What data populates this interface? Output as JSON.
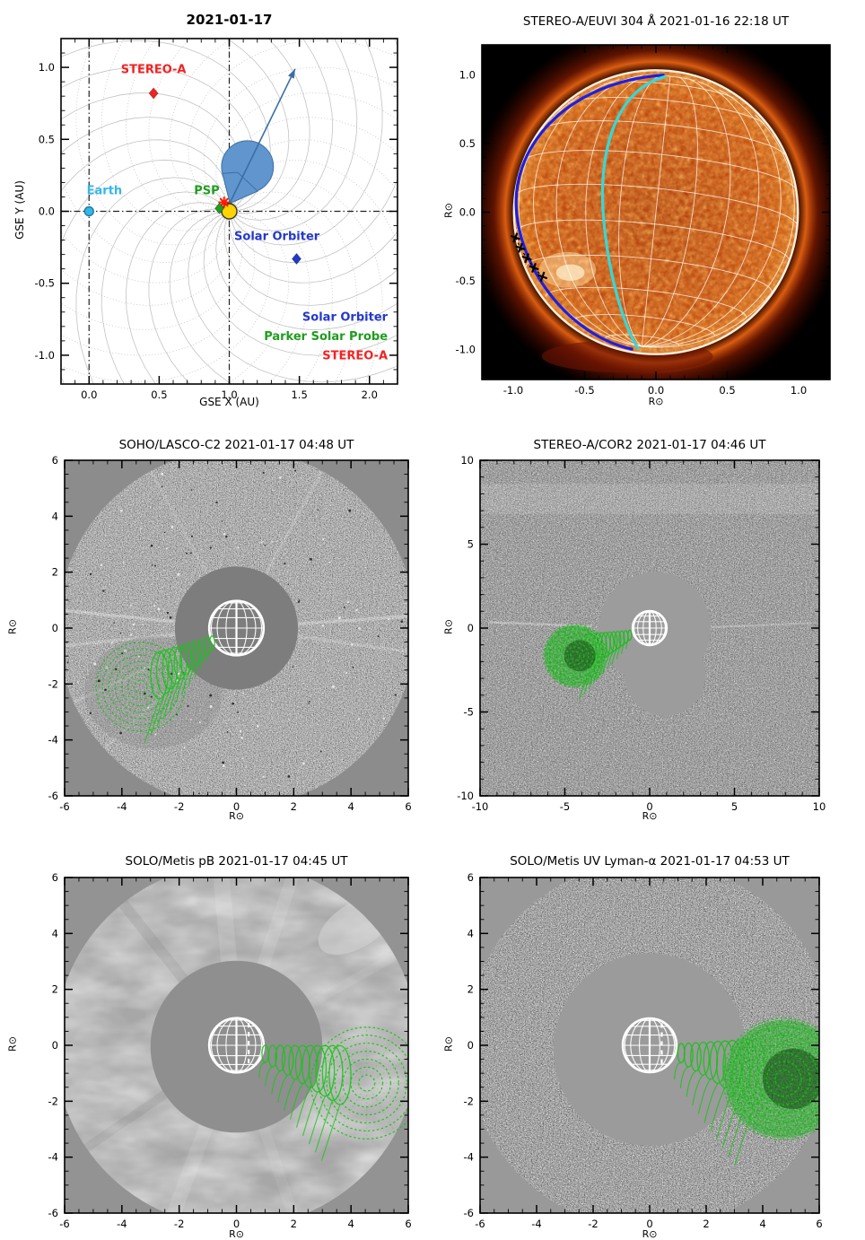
{
  "figure": {
    "background": "#ffffff"
  },
  "chart_data": [
    {
      "id": "orbit",
      "type": "scatter",
      "title": "2021-01-17",
      "xlabel": "GSE X (AU)",
      "ylabel": "GSE Y (AU)",
      "xlim": [
        -0.2,
        2.2
      ],
      "ylim": [
        -1.2,
        1.2
      ],
      "xticks": [
        0.0,
        0.5,
        1.0,
        1.5,
        2.0
      ],
      "xtick_labels": [
        "0.0",
        "0.5",
        "1.0",
        "1.5",
        "2.0"
      ],
      "yticks": [
        -1.0,
        -0.5,
        0.0,
        0.5,
        1.0
      ],
      "ytick_labels": [
        "-1.0",
        "-0.5",
        "0.0",
        "0.5",
        "1.0"
      ],
      "minor_tick_step": 0.1,
      "grid": "parker-spiral-field-lines",
      "sun": {
        "name": "Sun",
        "x": 1.0,
        "y": 0.0,
        "color": "#ffd400"
      },
      "spacecraft": [
        {
          "name": "STEREO-A",
          "x": 0.46,
          "y": 0.82,
          "marker": "diamond",
          "color": "#f22222",
          "label": {
            "text": "STEREO-A",
            "x": 0.46,
            "y": 0.96,
            "color": "#f22222"
          }
        },
        {
          "name": "Earth",
          "x": 0.0,
          "y": 0.0,
          "marker": "circle",
          "color": "#35b6e8",
          "label": {
            "text": "Earth",
            "x": 0.11,
            "y": 0.12,
            "color": "#35b6e8"
          }
        },
        {
          "name": "PSP",
          "x": 0.93,
          "y": 0.02,
          "marker": "diamond",
          "color": "#1f9d1f",
          "label": {
            "text": "PSP",
            "x": 0.84,
            "y": 0.12,
            "color": "#1f9d1f"
          }
        },
        {
          "name": "Solar Orbiter",
          "x": 1.48,
          "y": -0.33,
          "marker": "diamond",
          "color": "#2438cc",
          "label": {
            "text": "Solar Orbiter",
            "x": 1.34,
            "y": -0.2,
            "color": "#2438cc"
          }
        }
      ],
      "flare_star": {
        "x": 0.963,
        "y": 0.062,
        "color": "#ff1a00"
      },
      "cme": {
        "tip_x": 1.005,
        "tip_y": 0.055,
        "center_x": 1.13,
        "center_y": 0.31,
        "radius": 0.185,
        "fill": "#6096cd",
        "edge": "#3c6ea5"
      },
      "arrow": {
        "x1": 1.0,
        "y1": 0.05,
        "x2": 1.47,
        "y2": 0.99,
        "color": "#3c6ea5"
      },
      "guides": {
        "vertical_x": [
          0.0,
          1.0
        ],
        "horizontal_y": [
          0.0
        ]
      },
      "legend": [
        {
          "label": "Solar Orbiter",
          "color": "#2438cc"
        },
        {
          "label": "Parker Solar Probe",
          "color": "#1f9d1f"
        },
        {
          "label": "STEREO-A",
          "color": "#f22222"
        }
      ],
      "legend_anchor": {
        "x": 2.13,
        "y_start": -0.76,
        "dy": 0.135
      }
    },
    {
      "id": "euvi",
      "type": "image",
      "title": "STEREO-A/EUVI 304 Å 2021-01-16 22:18 UT",
      "xlabel": "R⊙",
      "ylabel": "R⊙",
      "xlim": [
        -1.22,
        1.22
      ],
      "ylim": [
        -1.22,
        1.22
      ],
      "xticks": [
        -1.0,
        -0.5,
        0.0,
        0.5,
        1.0
      ],
      "xtick_labels": [
        "-1.0",
        "-0.5",
        "0.0",
        "0.5",
        "1.0"
      ],
      "yticks": [
        -1.0,
        -0.5,
        0.0,
        0.5,
        1.0
      ],
      "ytick_labels": [
        "-1.0",
        "-0.5",
        "0.0",
        "0.5",
        "1.0"
      ],
      "minor_tick_step": 0.1,
      "disk_radius": 1.0,
      "colors": {
        "background": "#000000",
        "disk": "#c23c06",
        "limb": "#ffeacb",
        "grid": "#ffffff",
        "blue_meridian": "#1f1fe0",
        "cyan_meridian": "#35d8d8",
        "limb_markers": "#000000"
      },
      "limb_markers": [
        {
          "x": -0.985,
          "y": -0.185
        },
        {
          "x": -0.95,
          "y": -0.26
        },
        {
          "x": -0.905,
          "y": -0.335
        },
        {
          "x": -0.855,
          "y": -0.405
        },
        {
          "x": -0.795,
          "y": -0.47
        }
      ]
    },
    {
      "id": "lasco",
      "type": "image",
      "title": "SOHO/LASCO-C2 2021-01-17 04:48 UT",
      "xlabel": "R⊙",
      "ylabel": "R⊙",
      "xlim": [
        -6,
        6
      ],
      "ylim": [
        -6,
        6
      ],
      "xticks": [
        -6,
        -4,
        -2,
        0,
        2,
        4,
        6
      ],
      "xtick_labels": [
        "-6",
        "-4",
        "-2",
        "0",
        "2",
        "4",
        "6"
      ],
      "yticks": [
        -6,
        -4,
        -2,
        0,
        2,
        4,
        6
      ],
      "ytick_labels": [
        "-6",
        "-4",
        "-2",
        "0",
        "2",
        "4",
        "6"
      ],
      "minor_tick_step": 0.5,
      "fov_radius": 6.25,
      "occulter_radius": 2.15,
      "sun_radius": 0.95,
      "colors": {
        "background": "#8c8c8c",
        "fov": "#b2b2b2",
        "occulter": "#7d7d7d",
        "sun_grid": "#ffffff",
        "gcs": "#17c517"
      },
      "gcs": {
        "front_x": -3.35,
        "front_y": -2.1,
        "front_radius": 1.55,
        "axis_deg": 212,
        "leg_start": 1.0,
        "filled": false
      }
    },
    {
      "id": "cor2",
      "type": "image",
      "title": "STEREO-A/COR2 2021-01-17 04:46 UT",
      "xlabel": "R⊙",
      "ylabel": "R⊙",
      "xlim": [
        -10,
        10
      ],
      "ylim": [
        -10,
        10
      ],
      "xticks": [
        -10,
        -5,
        0,
        5,
        10
      ],
      "xtick_labels": [
        "-10",
        "-5",
        "0",
        "5",
        "10"
      ],
      "yticks": [
        -10,
        -5,
        0,
        5,
        10
      ],
      "ytick_labels": [
        "-10",
        "-5",
        "0",
        "5",
        "10"
      ],
      "minor_tick_step": 1,
      "occulter_radius": 3.3,
      "sun_radius": 1.0,
      "colors": {
        "background": "#8f8f8f",
        "occulter": "#9c9c9c",
        "sun_grid": "#ffffff",
        "gcs": "#12c212"
      },
      "gcs": {
        "front_x": -4.4,
        "front_y": -1.65,
        "front_radius": 1.85,
        "axis_deg": 200,
        "leg_start": 1.25,
        "filled": true
      }
    },
    {
      "id": "metis_pb",
      "type": "image",
      "title": "SOLO/Metis pB 2021-01-17 04:45 UT",
      "xlabel": "R⊙",
      "ylabel": "R⊙",
      "xlim": [
        -6,
        6
      ],
      "ylim": [
        -6,
        6
      ],
      "xticks": [
        -6,
        -4,
        -2,
        0,
        2,
        4,
        6
      ],
      "xtick_labels": [
        "-6",
        "-4",
        "-2",
        "0",
        "2",
        "4",
        "6"
      ],
      "yticks": [
        -6,
        -4,
        -2,
        0,
        2,
        4,
        6
      ],
      "ytick_labels": [
        "-6",
        "-4",
        "-2",
        "0",
        "2",
        "4",
        "6"
      ],
      "minor_tick_step": 0.5,
      "fov_radius": 6.35,
      "occulter_radius": 3.0,
      "sun_radius": 0.95,
      "colors": {
        "background": "#939393",
        "fov": "#a9a9a9",
        "occulter": "#8f8f8f",
        "sun_grid": "#ffffff",
        "gcs": "#17c517"
      },
      "gcs": {
        "front_x": 4.55,
        "front_y": -1.35,
        "front_radius": 1.95,
        "axis_deg": -17,
        "leg_start": 1.05,
        "filled": false
      }
    },
    {
      "id": "metis_uv",
      "type": "image",
      "title": "SOLO/Metis UV Lyman-α 2021-01-17 04:53 UT",
      "xlabel": "R⊙",
      "ylabel": "R⊙",
      "xlim": [
        -6,
        6
      ],
      "ylim": [
        -6,
        6
      ],
      "xticks": [
        -6,
        -4,
        -2,
        0,
        2,
        4,
        6
      ],
      "xtick_labels": [
        "-6",
        "-4",
        "-2",
        "0",
        "2",
        "4",
        "6"
      ],
      "yticks": [
        -6,
        -4,
        -2,
        0,
        2,
        4,
        6
      ],
      "ytick_labels": [
        "-6",
        "-4",
        "-2",
        "0",
        "2",
        "4",
        "6"
      ],
      "minor_tick_step": 0.5,
      "fov_radius": 6.5,
      "occulter_radius": 3.4,
      "sun_radius": 0.95,
      "colors": {
        "background": "#999999",
        "occulter": "#9b9b9b",
        "sun_grid": "#ffffff",
        "gcs": "#15c315"
      },
      "gcs": {
        "front_x": 4.75,
        "front_y": -1.2,
        "front_radius": 2.15,
        "axis_deg": -14,
        "leg_start": 1.15,
        "filled": true
      }
    }
  ]
}
